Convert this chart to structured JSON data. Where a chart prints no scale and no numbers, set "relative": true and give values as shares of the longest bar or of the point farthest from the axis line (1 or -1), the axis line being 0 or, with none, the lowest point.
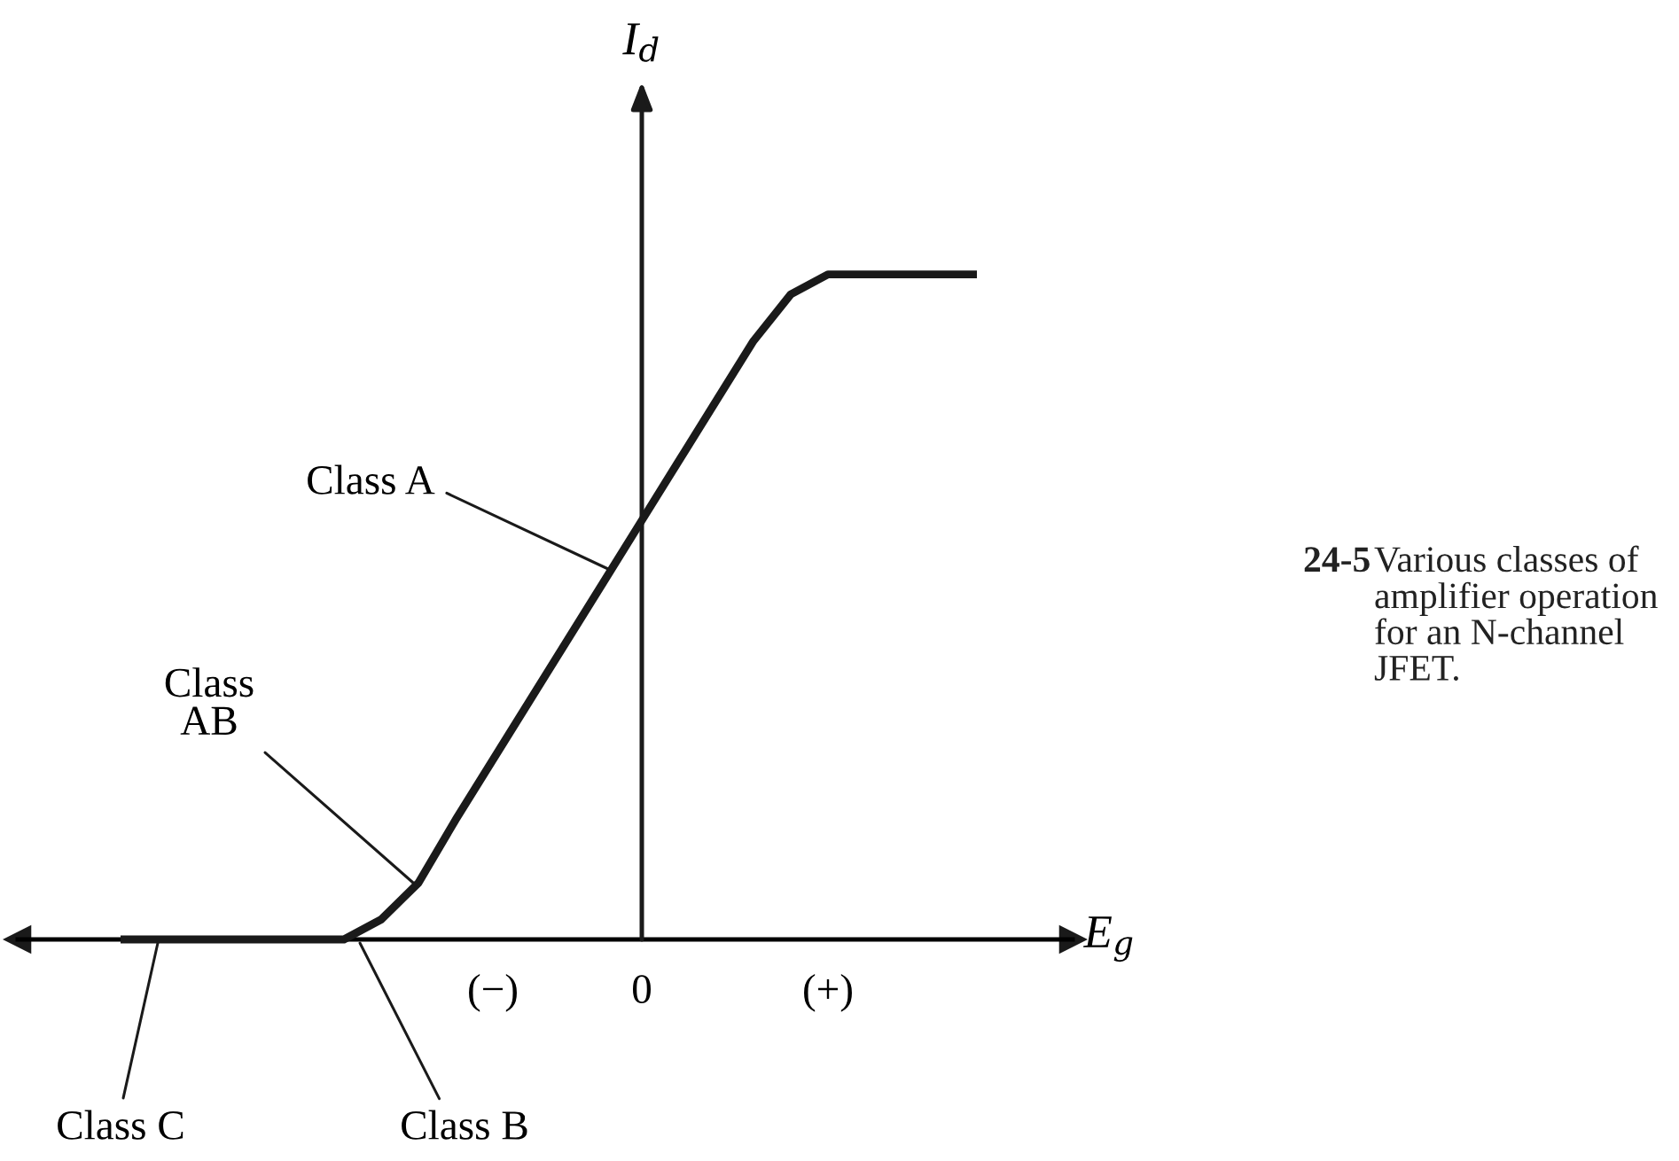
{
  "chart_data": {
    "type": "line",
    "relative": true,
    "categories": [
      null,
      null,
      null,
      null,
      null,
      null,
      null,
      null,
      null,
      null,
      null,
      null,
      "(−)",
      null,
      null,
      null,
      "0",
      null,
      null,
      null,
      null,
      "(+)",
      null,
      null,
      null,
      null,
      null,
      null
    ],
    "series": [
      {
        "color": "#1a1a1a",
        "values": [
          null,
          null,
          0,
          0,
          0,
          0,
          0,
          0,
          0,
          0.03,
          0.085,
          0.18,
          0.27,
          0.36,
          0.45,
          0.54,
          0.63,
          0.72,
          0.81,
          0.9,
          0.97,
          1,
          1,
          1,
          1,
          1,
          null,
          null
        ]
      }
    ],
    "xlabel": "E$_{g}$",
    "ylabel": "I$_{d}$",
    "annotations": [
      "Class A",
      "Class\nAB",
      "Class B",
      "Class C",
      "24-5",
      "Various classes of\namplifier operation\nfor an N-channel\nJFET."
    ],
    "legend": false,
    "grid": false
  }
}
